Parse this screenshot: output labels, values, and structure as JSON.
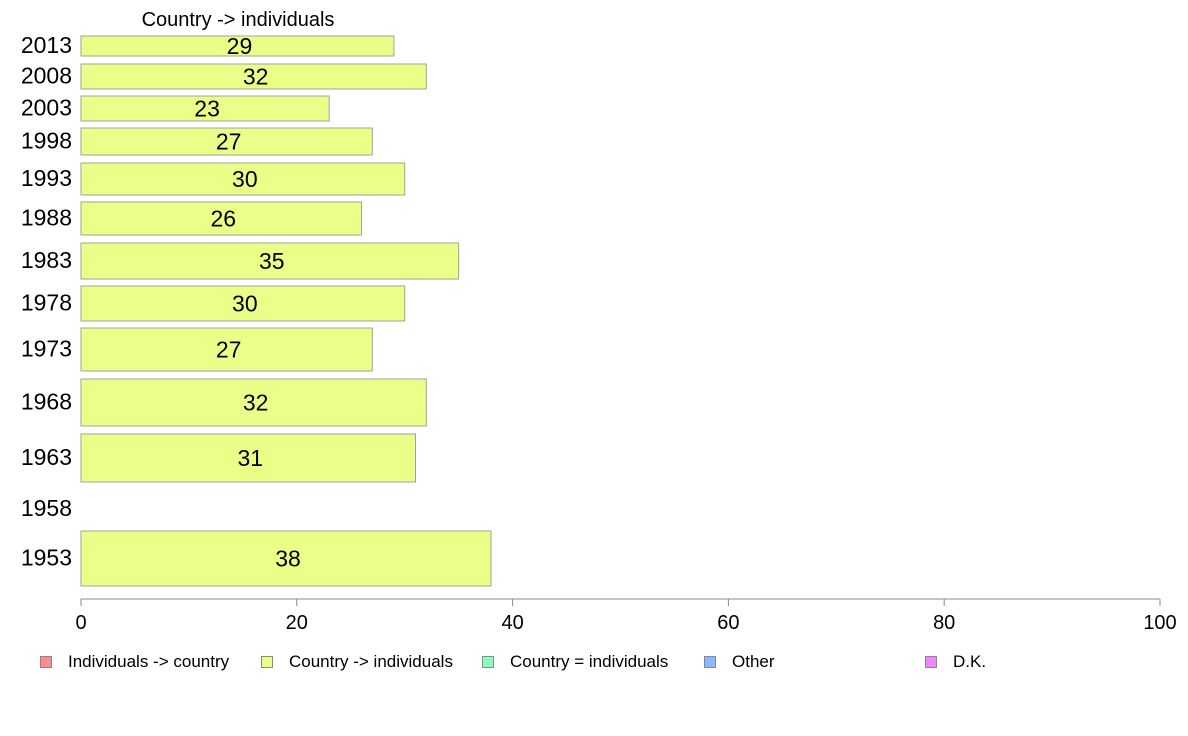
{
  "chart_data": {
    "type": "bar",
    "orientation": "horizontal",
    "title": "Country -> individuals",
    "categories": [
      "2013",
      "2008",
      "2003",
      "1998",
      "1993",
      "1988",
      "1983",
      "1978",
      "1973",
      "1968",
      "1963",
      "1958",
      "1953"
    ],
    "series": [
      {
        "name": "Country -> individuals",
        "values": [
          29,
          32,
          23,
          27,
          30,
          26,
          35,
          30,
          27,
          32,
          31,
          null,
          38
        ],
        "color": "#eaff88"
      }
    ],
    "xlim": [
      0,
      100
    ],
    "xticks": [
      "0",
      "20",
      "40",
      "60",
      "80",
      "100"
    ],
    "grid": false,
    "legend": {
      "position": "bottom",
      "items": [
        {
          "label": "Individuals -> country",
          "color": "#ff8c8c"
        },
        {
          "label": "Country -> individuals",
          "color": "#eaff88"
        },
        {
          "label": "Country = individuals",
          "color": "#88ffbb"
        },
        {
          "label": "Other",
          "color": "#88b8ff"
        },
        {
          "label": "D.K.",
          "color": "#ee88ff"
        }
      ]
    }
  }
}
